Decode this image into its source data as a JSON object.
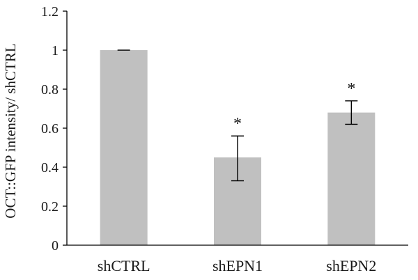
{
  "chart_data": {
    "type": "bar",
    "categories": [
      "shCTRL",
      "shEPN1",
      "shEPN2"
    ],
    "values": [
      1.0,
      0.45,
      0.68
    ],
    "error_low": [
      1.0,
      0.33,
      0.62
    ],
    "error_high": [
      1.0,
      0.56,
      0.74
    ],
    "significance": [
      "",
      "*",
      "*"
    ],
    "title": "",
    "xlabel": "",
    "ylabel": "OCT::GFP intensity/ shCTRL",
    "ylim": [
      0,
      1.2
    ],
    "yticks": [
      "0",
      "0.2",
      "0.4",
      "0.6",
      "0.8",
      "1",
      "1.2"
    ],
    "grid": false,
    "bar_color": "#c0c0c0",
    "axis_color": "#000000"
  }
}
